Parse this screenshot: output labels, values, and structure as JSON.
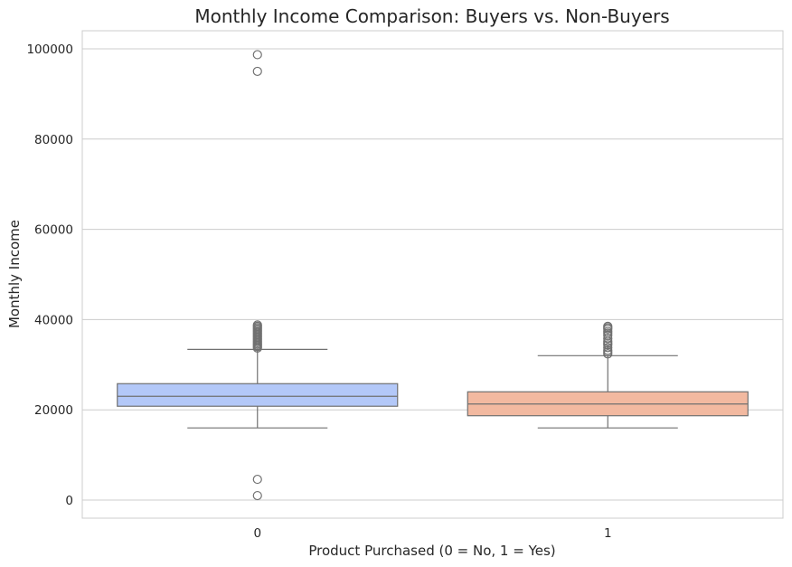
{
  "chart_data": {
    "type": "box",
    "title": "Monthly Income Comparison: Buyers vs. Non-Buyers",
    "xlabel": "Product Purchased (0 = No, 1 = Yes)",
    "ylabel": "Monthly Income",
    "categories": [
      "0",
      "1"
    ],
    "ylim": [
      -4000,
      104000
    ],
    "yticks": [
      0,
      20000,
      40000,
      60000,
      80000,
      100000
    ],
    "grid": true,
    "colors": [
      "#b3c8f8",
      "#f2b9a0"
    ],
    "boxes": [
      {
        "category": "0",
        "whisker_low": 16000,
        "q1": 20800,
        "median": 23000,
        "q3": 25800,
        "whisker_high": 33400,
        "outliers": [
          98700,
          95000,
          38800,
          38500,
          38200,
          37900,
          37600,
          37300,
          37000,
          36700,
          36400,
          36100,
          35800,
          35500,
          35200,
          34900,
          34600,
          34300,
          34000,
          33700,
          4600,
          1000
        ]
      },
      {
        "category": "1",
        "whisker_low": 16000,
        "q1": 18700,
        "median": 21300,
        "q3": 24000,
        "whisker_high": 32000,
        "outliers": [
          38500,
          38200,
          37900,
          37400,
          37000,
          36500,
          35800,
          35200,
          34800,
          34400,
          33800,
          33200,
          32800,
          32400
        ]
      }
    ]
  }
}
